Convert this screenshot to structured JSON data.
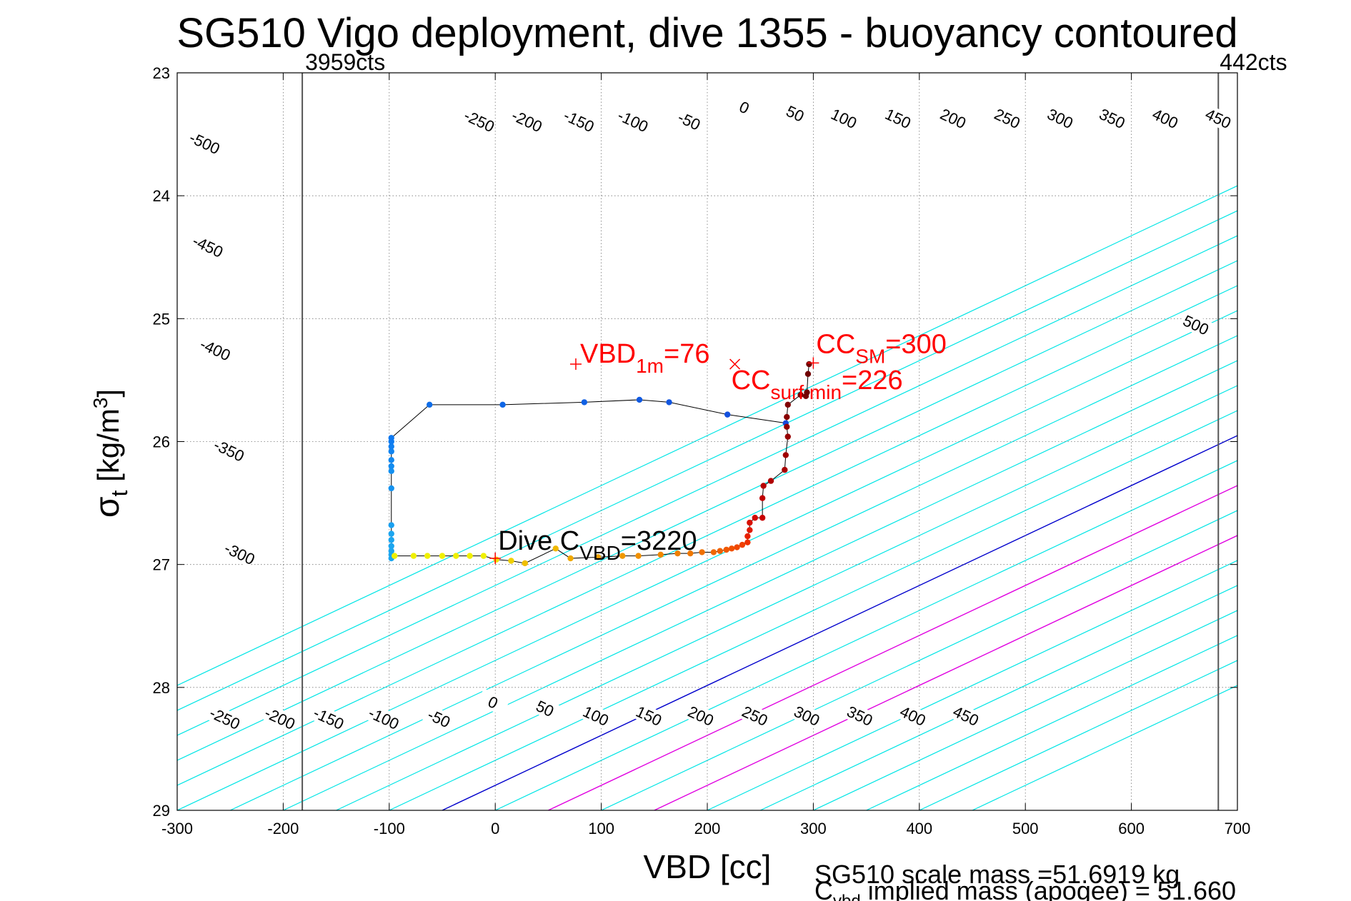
{
  "title": "SG510 Vigo deployment, dive 1355 - buoyancy contoured",
  "chart_data": {
    "type": "scatter",
    "xlabel": "VBD [cc]",
    "ylabel": {
      "main": "σ",
      "sub": "t",
      "unit_pre": " [kg/m",
      "unit_sup": "3",
      "unit_post": "]"
    },
    "xlim": [
      -300,
      700
    ],
    "ylim": [
      23,
      29
    ],
    "y_reversed": true,
    "grid": "dotted",
    "xticks": [
      -300,
      -200,
      -100,
      0,
      100,
      200,
      300,
      400,
      500,
      600,
      700
    ],
    "yticks": [
      23,
      24,
      25,
      26,
      27,
      28,
      29
    ],
    "contour_levels": [
      -500,
      -450,
      -400,
      -350,
      -300,
      -250,
      -200,
      -150,
      -100,
      -50,
      0,
      50,
      100,
      150,
      200,
      250,
      300,
      350,
      400,
      450,
      500
    ],
    "contour_label_upper": [
      {
        "text": "-500",
        "x": -274,
        "y": 23.57
      },
      {
        "text": "-450",
        "x": -271,
        "y": 24.41
      },
      {
        "text": "-400",
        "x": -264,
        "y": 25.25
      },
      {
        "text": "-350",
        "x": -251,
        "y": 26.07
      },
      {
        "text": "-300",
        "x": -241,
        "y": 26.91
      },
      {
        "text": "-250",
        "x": -15,
        "y": 23.39
      },
      {
        "text": "-200",
        "x": 30,
        "y": 23.39
      },
      {
        "text": "-150",
        "x": 79,
        "y": 23.39
      },
      {
        "text": "-100",
        "x": 130,
        "y": 23.39
      },
      {
        "text": "-50",
        "x": 183,
        "y": 23.39
      },
      {
        "text": "0",
        "x": 235,
        "y": 23.28
      },
      {
        "text": "50",
        "x": 283,
        "y": 23.33
      },
      {
        "text": "100",
        "x": 329,
        "y": 23.37
      },
      {
        "text": "150",
        "x": 380,
        "y": 23.37
      },
      {
        "text": "200",
        "x": 432,
        "y": 23.37
      },
      {
        "text": "250",
        "x": 483,
        "y": 23.37
      },
      {
        "text": "300",
        "x": 533,
        "y": 23.37
      },
      {
        "text": "350",
        "x": 582,
        "y": 23.37
      },
      {
        "text": "400",
        "x": 632,
        "y": 23.37
      },
      {
        "text": "450",
        "x": 682,
        "y": 23.37
      },
      {
        "text": "500",
        "x": 661,
        "y": 25.05
      }
    ],
    "contour_label_lower": [
      {
        "text": "-250",
        "x": -255,
        "y": 28.25
      },
      {
        "text": "-200",
        "x": -203,
        "y": 28.25
      },
      {
        "text": "-150",
        "x": -157,
        "y": 28.25
      },
      {
        "text": "-100",
        "x": -105,
        "y": 28.25
      },
      {
        "text": "-50",
        "x": -53,
        "y": 28.25
      },
      {
        "text": "0",
        "x": -2,
        "y": 28.12
      },
      {
        "text": "50",
        "x": 47,
        "y": 28.17
      },
      {
        "text": "100",
        "x": 95,
        "y": 28.23
      },
      {
        "text": "150",
        "x": 145,
        "y": 28.23
      },
      {
        "text": "200",
        "x": 194,
        "y": 28.23
      },
      {
        "text": "250",
        "x": 245,
        "y": 28.23
      },
      {
        "text": "300",
        "x": 294,
        "y": 28.23
      },
      {
        "text": "350",
        "x": 344,
        "y": 28.23
      },
      {
        "text": "400",
        "x": 394,
        "y": 28.23
      },
      {
        "text": "450",
        "x": 444,
        "y": 28.23
      }
    ],
    "count_markers": [
      {
        "label": "3959cts",
        "x": -182
      },
      {
        "label": "442cts",
        "x": 682
      }
    ],
    "dive_track": [
      {
        "x": -98,
        "y": 26.95,
        "c": "#1ca6f0"
      },
      {
        "x": -98,
        "y": 26.92,
        "c": "#1ca6f0"
      },
      {
        "x": -98,
        "y": 26.89,
        "c": "#1ca6f0"
      },
      {
        "x": -98,
        "y": 26.85,
        "c": "#1ca6f0"
      },
      {
        "x": -98,
        "y": 26.8,
        "c": "#1ca6f0"
      },
      {
        "x": -98,
        "y": 26.75,
        "c": "#1ca6f0"
      },
      {
        "x": -98,
        "y": 26.68,
        "c": "#1aa0f0"
      },
      {
        "x": -98,
        "y": 26.38,
        "c": "#1593f0"
      },
      {
        "x": -98,
        "y": 26.24,
        "c": "#1490f0"
      },
      {
        "x": -98,
        "y": 26.2,
        "c": "#138cf0"
      },
      {
        "x": -98,
        "y": 26.15,
        "c": "#1288f0"
      },
      {
        "x": -98,
        "y": 26.08,
        "c": "#1184f0"
      },
      {
        "x": -98,
        "y": 26.04,
        "c": "#1080f0"
      },
      {
        "x": -98,
        "y": 26.0,
        "c": "#0f7cf0"
      },
      {
        "x": -98,
        "y": 25.97,
        "c": "#0e78f0"
      },
      {
        "x": -62,
        "y": 25.7,
        "c": "#0f6de8"
      },
      {
        "x": 7,
        "y": 25.7,
        "c": "#0f66e6"
      },
      {
        "x": 84,
        "y": 25.68,
        "c": "#1060e4"
      },
      {
        "x": 136,
        "y": 25.66,
        "c": "#115ae2"
      },
      {
        "x": 164,
        "y": 25.68,
        "c": "#1256e0"
      },
      {
        "x": 219,
        "y": 25.78,
        "c": "#1350de"
      },
      {
        "x": 274,
        "y": 25.85,
        "c": "#144adc"
      }
    ],
    "climb_track": [
      {
        "x": -95,
        "y": 26.93,
        "c": "#f0f000"
      },
      {
        "x": -77,
        "y": 26.93,
        "c": "#f0f000"
      },
      {
        "x": -64,
        "y": 26.93,
        "c": "#f0f000"
      },
      {
        "x": -50,
        "y": 26.93,
        "c": "#f0f000"
      },
      {
        "x": -37,
        "y": 26.93,
        "c": "#f0f000"
      },
      {
        "x": -24,
        "y": 26.93,
        "c": "#f0f000"
      },
      {
        "x": -11,
        "y": 26.93,
        "c": "#f0f000"
      },
      {
        "x": 1,
        "y": 26.96,
        "c": "#f0e000"
      },
      {
        "x": 15,
        "y": 26.97,
        "c": "#f0d000"
      },
      {
        "x": 28,
        "y": 26.99,
        "c": "#f0c000"
      },
      {
        "x": 57,
        "y": 26.87,
        "c": "#f0b800"
      },
      {
        "x": 71,
        "y": 26.95,
        "c": "#f0a800"
      },
      {
        "x": 97,
        "y": 26.94,
        "c": "#f0a000"
      },
      {
        "x": 120,
        "y": 26.93,
        "c": "#f09800"
      },
      {
        "x": 135,
        "y": 26.93,
        "c": "#f09000"
      },
      {
        "x": 156,
        "y": 26.92,
        "c": "#f08800"
      },
      {
        "x": 172,
        "y": 26.91,
        "c": "#f08000"
      },
      {
        "x": 184,
        "y": 26.91,
        "c": "#f07800"
      },
      {
        "x": 195,
        "y": 26.9,
        "c": "#f07000"
      },
      {
        "x": 206,
        "y": 26.9,
        "c": "#f06800"
      },
      {
        "x": 212,
        "y": 26.89,
        "c": "#f06000"
      },
      {
        "x": 218,
        "y": 26.88,
        "c": "#f05800"
      },
      {
        "x": 223,
        "y": 26.87,
        "c": "#f05000"
      },
      {
        "x": 228,
        "y": 26.86,
        "c": "#f04800"
      },
      {
        "x": 233,
        "y": 26.84,
        "c": "#f04000"
      },
      {
        "x": 238,
        "y": 26.82,
        "c": "#ee3000"
      },
      {
        "x": 238,
        "y": 26.77,
        "c": "#e82000"
      },
      {
        "x": 240,
        "y": 26.72,
        "c": "#e01800"
      },
      {
        "x": 240,
        "y": 26.66,
        "c": "#d81000"
      },
      {
        "x": 245,
        "y": 26.62,
        "c": "#d00800"
      },
      {
        "x": 252,
        "y": 26.62,
        "c": "#c80000"
      },
      {
        "x": 252,
        "y": 26.46,
        "c": "#c00000"
      },
      {
        "x": 253,
        "y": 26.36,
        "c": "#b80000"
      },
      {
        "x": 260,
        "y": 26.32,
        "c": "#b00000"
      },
      {
        "x": 273,
        "y": 26.23,
        "c": "#a80000"
      },
      {
        "x": 274,
        "y": 26.11,
        "c": "#a00000"
      },
      {
        "x": 276,
        "y": 25.96,
        "c": "#980000"
      },
      {
        "x": 275,
        "y": 25.88,
        "c": "#900000"
      },
      {
        "x": 275,
        "y": 25.8,
        "c": "#880000"
      },
      {
        "x": 276,
        "y": 25.7,
        "c": "#800000"
      },
      {
        "x": 288,
        "y": 25.62,
        "c": "#780000"
      },
      {
        "x": 293,
        "y": 25.63,
        "c": "#780000"
      },
      {
        "x": 294,
        "y": 25.6,
        "c": "#700000"
      },
      {
        "x": 295,
        "y": 25.45,
        "c": "#700000"
      },
      {
        "x": 296,
        "y": 25.37,
        "c": "#700000"
      }
    ],
    "annotations": [
      {
        "kind": "plus",
        "x": 76,
        "y": 25.37,
        "color": "#ff0000",
        "label_main": "VBD",
        "label_sub": "1m",
        "label_post": "=76"
      },
      {
        "kind": "x",
        "x": 226,
        "y": 25.37,
        "color": "#ff0000",
        "label_main": "CC",
        "label_sub": "surf min",
        "label_post": "=226"
      },
      {
        "kind": "plus",
        "x": 300,
        "y": 25.36,
        "color": "#ff0000",
        "label_main": "CC",
        "label_sub": "SM",
        "label_post": "=300"
      },
      {
        "kind": "plus",
        "x": 0,
        "y": 26.95,
        "color": "#ff0000",
        "label_main": "Dive C",
        "label_sub": "VBD",
        "label_post": "=3220"
      }
    ],
    "footer_line1": "SG510 scale mass =51.6919 kg",
    "footer_line2": {
      "main": "C",
      "sub": "vbd",
      "post": " implied mass (apogee) = 51.660"
    },
    "colors": {
      "contour": "#00e5e5",
      "zero_line": "#0000cc",
      "highlight": "#e000e0",
      "annotation": "#ff0000",
      "track": "#000000",
      "marker_line": "#555555"
    }
  }
}
